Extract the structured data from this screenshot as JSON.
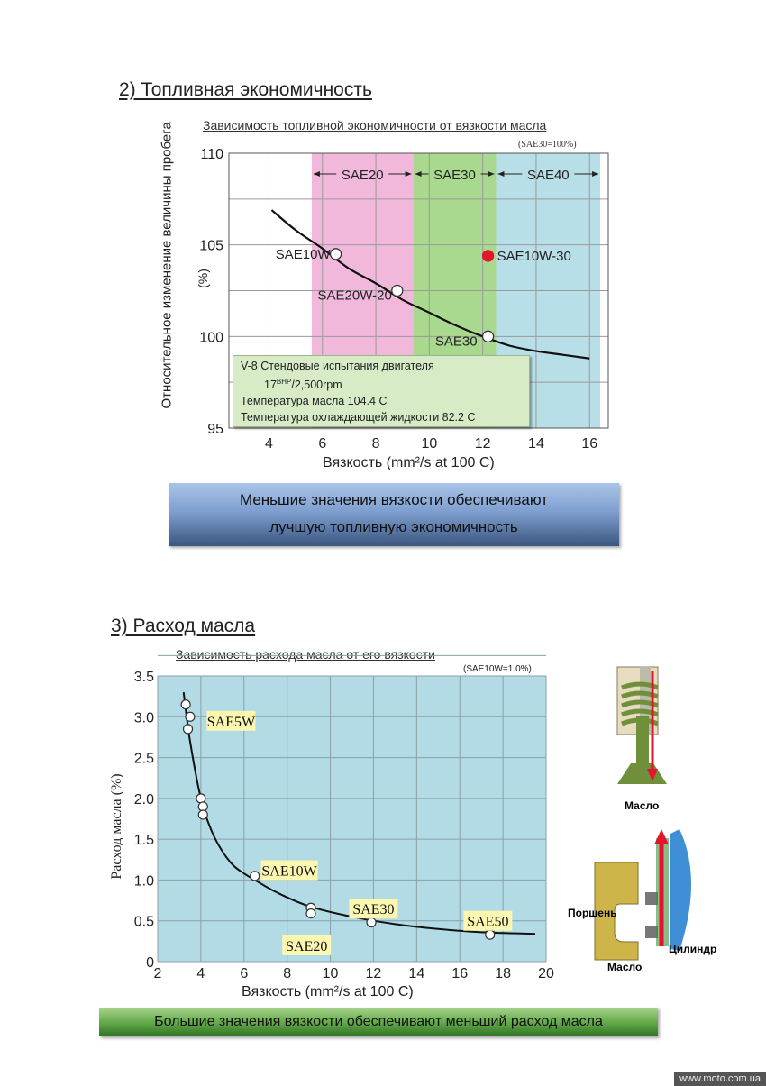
{
  "section1": {
    "title": "2) Топливная экономичность",
    "subtitle": "Зависимость топливной экономичности от вязкости масла",
    "note": "(SAE30=100%)",
    "ylabel_line1": "Относительное изменение величины пробега",
    "ylabel_line2": "(%)",
    "xlabel": "Вязкость (mm²/s at 100 C)",
    "banner_line1": "Меньшие значения вязкости обеспечивают",
    "banner_line2": "лучшую топливную экономичность",
    "infobox": {
      "line1": "V-8 Стендовые испытания двигателя",
      "line2_pre": "17",
      "line2_sup": "BHP",
      "line2_post": "/2,500rpm",
      "line3": "Температура масла   104.4 C",
      "line4": "Температура охлаждающей жидкости  82.2 C"
    }
  },
  "section2": {
    "title": "3) Расход масла",
    "subtitle": "Зависимость расхода масла от его вязкости",
    "note": "(SAE10W=1.0%)",
    "ylabel": "Расход масла (%)",
    "xlabel": "Вязкость (mm²/s  at 100 C)",
    "banner": "Большие значения вязкости обеспечивают меньший расход масла",
    "diagram": {
      "oil_top": "Масло",
      "piston": "Поршень",
      "oil_bottom": "Масло",
      "cylinder": "Цилиндр"
    }
  },
  "watermark": "www.moto.com.ua",
  "colors": {
    "sae20": "#f2b8dc",
    "sae30": "#a9d98f",
    "sae40": "#b8dfe7",
    "chart2_bg": "#b3dbe6",
    "red_point": "#e3142b",
    "infobox_bg": "#d6ebc6"
  },
  "chart_data": [
    {
      "type": "line",
      "title": "Зависимость топливной экономичности от вязкости масла",
      "xlabel": "Вязкость (mm²/s at 100 C)",
      "ylabel": "Относительное изменение величины пробега (%)",
      "xlim": [
        2.5,
        16.7
      ],
      "ylim": [
        95,
        110
      ],
      "xticks": [
        4,
        6,
        8,
        10,
        12,
        14,
        16
      ],
      "yticks": [
        95,
        100,
        105,
        110
      ],
      "grid": true,
      "bands": [
        {
          "name": "SAE20",
          "from": 5.6,
          "to": 9.4
        },
        {
          "name": "SAE30",
          "from": 9.4,
          "to": 12.5
        },
        {
          "name": "SAE40",
          "from": 12.5,
          "to": 16.4
        }
      ],
      "curve": {
        "x": [
          4.1,
          5.0,
          6.0,
          7.0,
          8.0,
          9.0,
          10.0,
          11.0,
          12.0,
          13.0,
          14.0,
          15.0,
          16.0
        ],
        "y": [
          106.9,
          105.8,
          104.8,
          103.7,
          102.9,
          102.0,
          101.3,
          100.6,
          100.0,
          99.5,
          99.2,
          99.0,
          98.8
        ]
      },
      "points": [
        {
          "label": "SAE10W",
          "x": 6.5,
          "y": 104.5
        },
        {
          "label": "SAE20W-20",
          "x": 8.8,
          "y": 102.5
        },
        {
          "label": "SAE30",
          "x": 12.2,
          "y": 100.0
        },
        {
          "label": "SAE10W-30",
          "x": 12.2,
          "y": 104.4,
          "highlight": true
        }
      ]
    },
    {
      "type": "line",
      "title": "Зависимость расхода масла от его вязкости",
      "xlabel": "Вязкость (mm²/s  at 100 C)",
      "ylabel": "Расход масла (%)",
      "xlim": [
        2,
        20
      ],
      "ylim": [
        0,
        3.5
      ],
      "xticks": [
        2,
        4,
        6,
        8,
        10,
        12,
        14,
        16,
        18,
        20
      ],
      "yticks": [
        0,
        0.5,
        1.0,
        1.5,
        2.0,
        2.5,
        3.0,
        3.5
      ],
      "ytick_labels": [
        "0",
        "0.5",
        "1.0",
        "1.5",
        "2.0",
        "2.5",
        "3.0",
        "3.5"
      ],
      "grid": true,
      "curve": {
        "x": [
          3.2,
          3.5,
          4.0,
          4.5,
          5.0,
          5.5,
          6.0,
          6.5,
          7.5,
          9.0,
          11.0,
          13.0,
          15.0,
          17.0,
          19.5
        ],
        "y": [
          3.3,
          2.7,
          2.0,
          1.6,
          1.35,
          1.18,
          1.08,
          1.0,
          0.85,
          0.68,
          0.55,
          0.46,
          0.4,
          0.36,
          0.34
        ]
      },
      "points": [
        {
          "x": 3.3,
          "y": 3.15
        },
        {
          "x": 3.5,
          "y": 3.0
        },
        {
          "x": 3.4,
          "y": 2.85
        },
        {
          "x": 4.0,
          "y": 2.0
        },
        {
          "x": 4.1,
          "y": 1.9
        },
        {
          "x": 4.1,
          "y": 1.8
        },
        {
          "x": 6.5,
          "y": 1.05
        },
        {
          "x": 9.1,
          "y": 0.66
        },
        {
          "x": 9.1,
          "y": 0.59
        },
        {
          "x": 11.9,
          "y": 0.58
        },
        {
          "x": 11.9,
          "y": 0.48
        },
        {
          "x": 17.4,
          "y": 0.4
        },
        {
          "x": 17.4,
          "y": 0.33
        }
      ],
      "labels": [
        {
          "text": "SAE5W",
          "x": 5.4,
          "y": 2.95
        },
        {
          "text": "SAE10W",
          "x": 8.1,
          "y": 1.12
        },
        {
          "text": "SAE20",
          "x": 8.9,
          "y": 0.2
        },
        {
          "text": "SAE30",
          "x": 12.0,
          "y": 0.65
        },
        {
          "text": "SAE50",
          "x": 17.3,
          "y": 0.5
        }
      ]
    }
  ]
}
